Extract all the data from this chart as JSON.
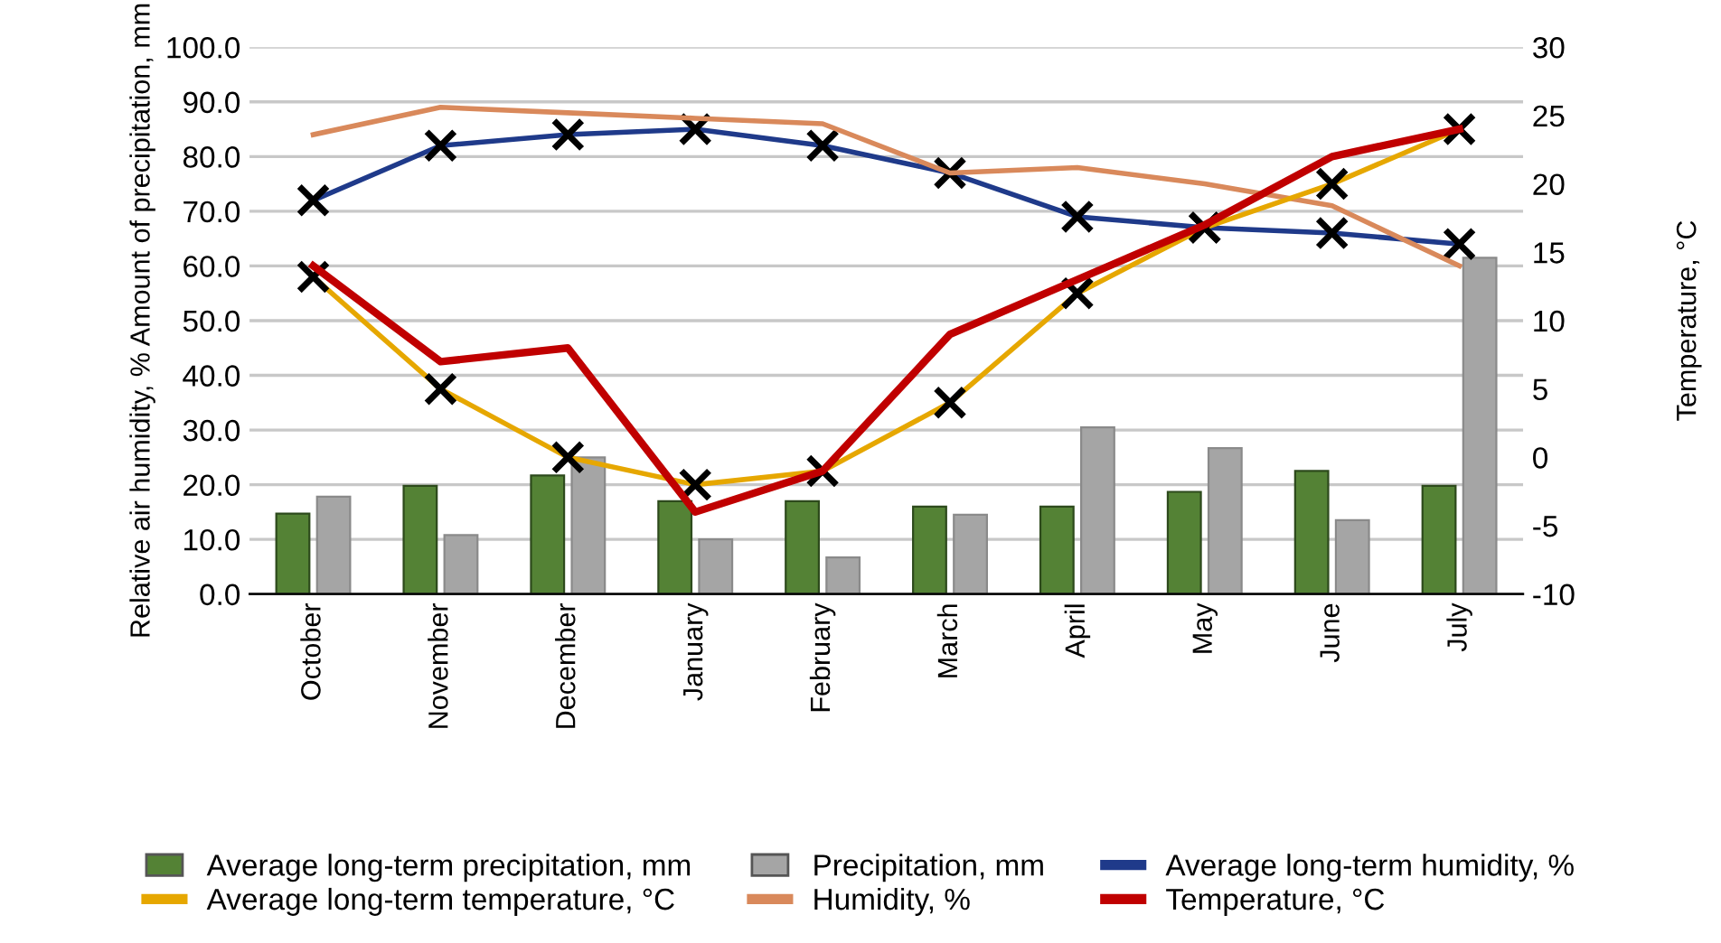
{
  "chart_data": {
    "type": "bar",
    "ylabel": "Relative air humidity, % Amount of precipitation, mm",
    "y2label": "Temperature, °C",
    "categories": [
      "October",
      "November",
      "December",
      "January",
      "February",
      "March",
      "April",
      "May",
      "June",
      "July"
    ],
    "series": [
      {
        "name": "Average long-term precipitation, mm",
        "color": "#548235",
        "values": [
          14.7,
          19.8,
          21.7,
          17.0,
          17.0,
          16.0,
          16.0,
          18.7,
          22.5,
          19.8
        ]
      },
      {
        "name": "Precipitation, mm",
        "color": "#a5a5a5",
        "values": [
          17.8,
          10.8,
          25.0,
          10.0,
          6.7,
          14.5,
          30.5,
          26.7,
          13.5,
          61.5
        ]
      },
      {
        "name": "Average long-term humidity, %",
        "type": "line",
        "color": "#1f3a8a",
        "marker": "cross",
        "values": [
          72,
          82,
          84,
          85,
          82,
          77,
          69,
          67,
          66,
          64
        ]
      },
      {
        "name": "Average long-term temperature, °C",
        "type": "line",
        "axis": "y2",
        "color": "#e6a700",
        "marker": "cross",
        "values": [
          13.2,
          5,
          0,
          -2,
          -1,
          4,
          12,
          16.8,
          20,
          24
        ]
      },
      {
        "name": "Humidity, %",
        "type": "line",
        "color": "#d9895b",
        "values": [
          84,
          89,
          88,
          87,
          86,
          77,
          78,
          75,
          71,
          60
        ]
      },
      {
        "name": "Temperature, °C",
        "type": "line",
        "axis": "y2",
        "color": "#c00000",
        "values": [
          14,
          7,
          8,
          -4,
          -1,
          9,
          13,
          17,
          22,
          24
        ]
      }
    ],
    "ylim": [
      0,
      100
    ],
    "yticks": [
      {
        "value": 0,
        "label": "0.0"
      },
      {
        "value": 10,
        "label": "10.0"
      },
      {
        "value": 20,
        "label": "20.0"
      },
      {
        "value": 30,
        "label": "30.0"
      },
      {
        "value": 40,
        "label": "40.0"
      },
      {
        "value": 50,
        "label": "50.0"
      },
      {
        "value": 60,
        "label": "60.0"
      },
      {
        "value": 70,
        "label": "70.0"
      },
      {
        "value": 80,
        "label": "80.0"
      },
      {
        "value": 90,
        "label": "90.0"
      },
      {
        "value": 100,
        "label": "100.0"
      }
    ],
    "y2lim": [
      -10,
      30
    ],
    "y2ticks": [
      -10,
      -5,
      0,
      5,
      10,
      15,
      20,
      25,
      30
    ],
    "grid": "y",
    "legend": "bottom"
  }
}
